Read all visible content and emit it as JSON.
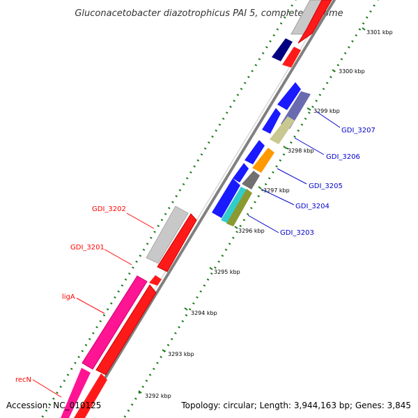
{
  "title": "Gluconacetobacter diazotrophicus PAI 5, complete genome",
  "accession": "Accession: NC_010125",
  "topology": "Topology: circular; Length: 3,944,163 bp; Genes: 3,845",
  "colors": {
    "forward_label": "#0000cc",
    "reverse_label": "#ff0000",
    "backbone": "#808080",
    "tick_dots": "#1a7a1a"
  },
  "scale_ticks": [
    {
      "label": "3301 kbp"
    },
    {
      "label": "3300 kbp"
    },
    {
      "label": "3299 kbp"
    },
    {
      "label": "3298 kbp"
    },
    {
      "label": "3297 kbp"
    },
    {
      "label": "3296 kbp"
    },
    {
      "label": "3295 kbp"
    },
    {
      "label": "3294 kbp"
    },
    {
      "label": "3293 kbp"
    },
    {
      "label": "3292 kbp"
    }
  ],
  "gene_labels": [
    {
      "name": "GDI_3207",
      "strand": "forward"
    },
    {
      "name": "GDI_3206",
      "strand": "forward"
    },
    {
      "name": "GDI_3205",
      "strand": "forward"
    },
    {
      "name": "GDI_3204",
      "strand": "forward"
    },
    {
      "name": "GDI_3203",
      "strand": "forward"
    },
    {
      "name": "GDI_3202",
      "strand": "reverse"
    },
    {
      "name": "GDI_3201",
      "strand": "reverse"
    },
    {
      "name": "ligA",
      "strand": "reverse"
    },
    {
      "name": "recN",
      "strand": "reverse"
    }
  ]
}
